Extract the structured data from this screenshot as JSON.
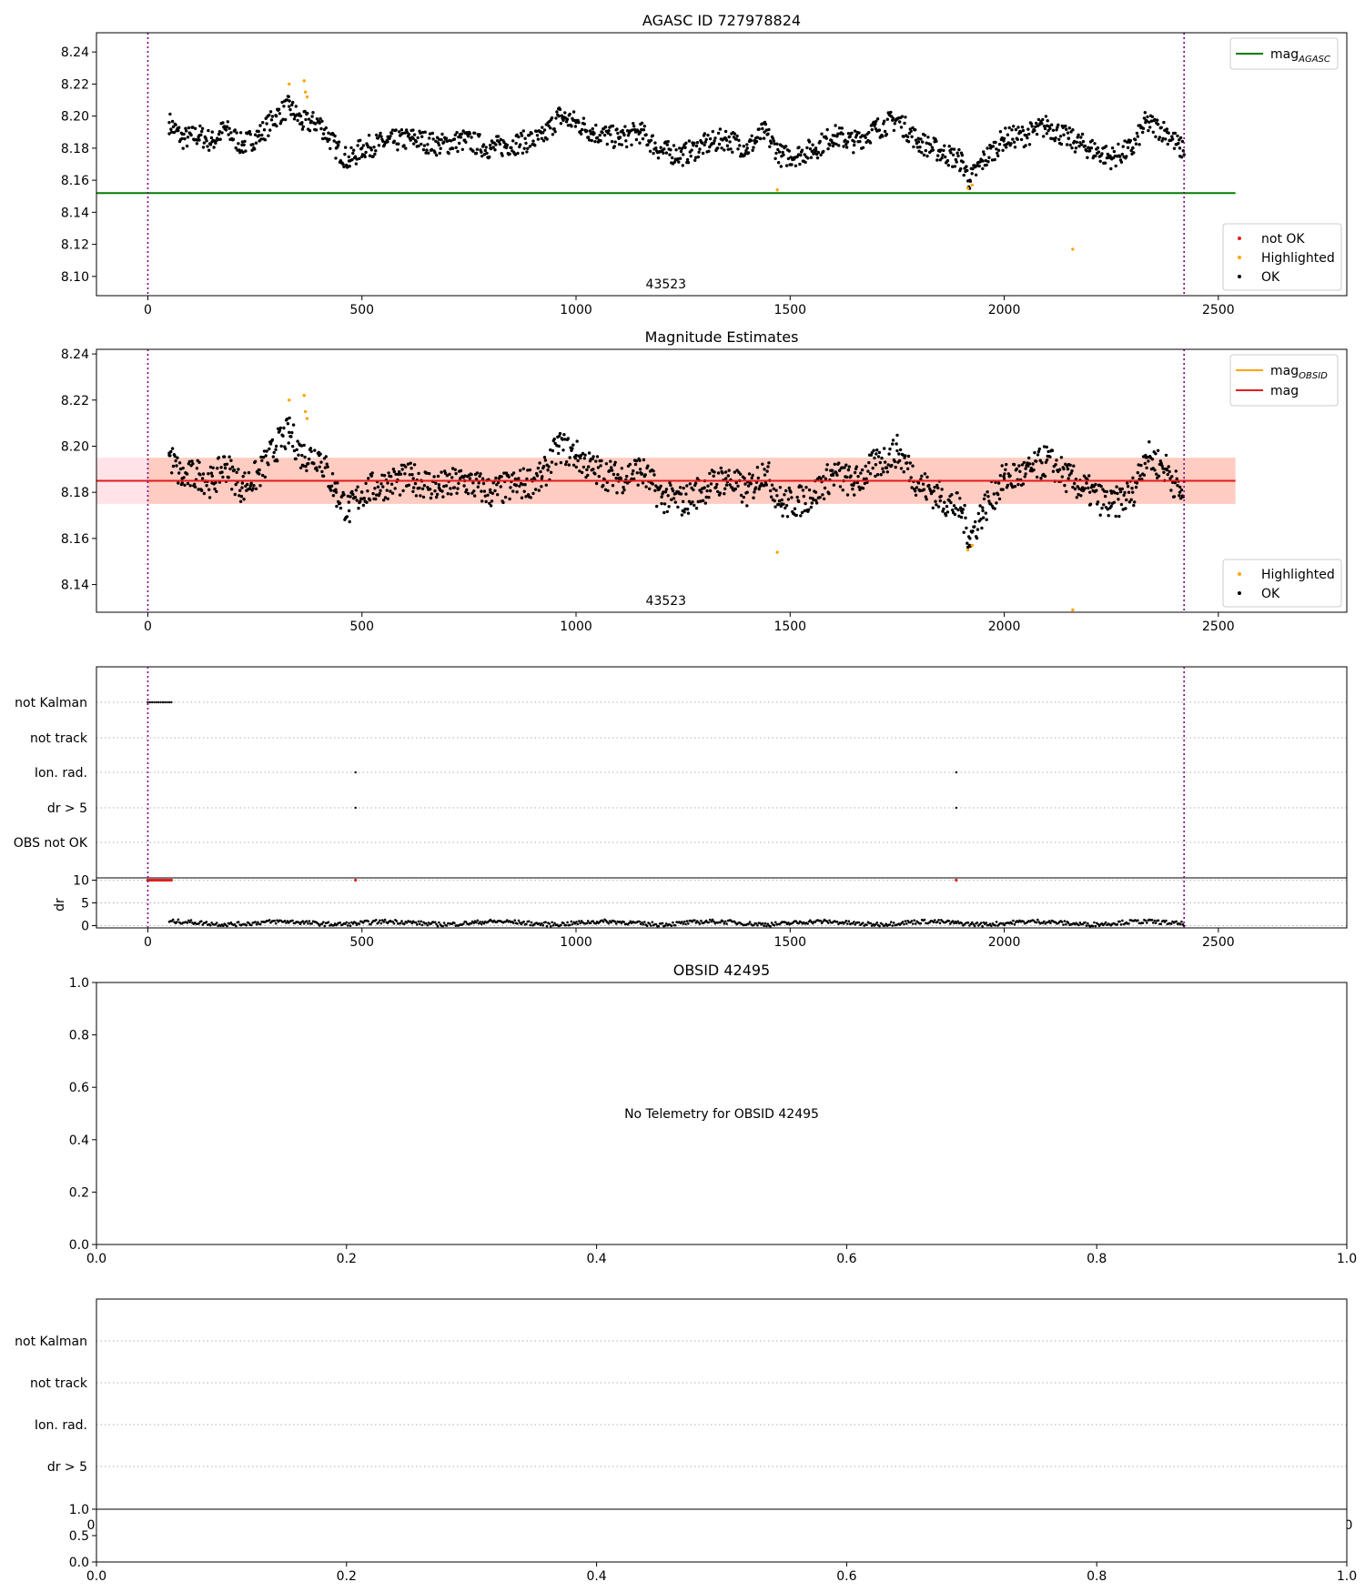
{
  "chart_data": [
    {
      "type": "scatter",
      "title": "AGASC ID 727978824",
      "annotation": "43523",
      "xlim": [
        -120,
        2800
      ],
      "ylim": [
        8.088,
        8.252
      ],
      "xticks": [
        0,
        500,
        1000,
        1500,
        2000,
        2500
      ],
      "yticks": [
        8.1,
        8.12,
        8.14,
        8.16,
        8.18,
        8.2,
        8.22,
        8.24
      ],
      "obs_bounds": [
        0,
        2420
      ],
      "mag_agasc": 8.152,
      "legend_lines": [
        {
          "label": "mag",
          "sub": "AGASC",
          "color": "#007f00"
        }
      ],
      "legend_points": [
        {
          "label": "not OK",
          "color": "#e41a1c"
        },
        {
          "label": "Highlighted",
          "color": "#ffa500"
        },
        {
          "label": "OK",
          "color": "#000000"
        }
      ],
      "series": [
        {
          "name": "OK",
          "color": "#000000",
          "values": [
            [
              50,
              8.196
            ],
            [
              80,
              8.186
            ],
            [
              120,
              8.188
            ],
            [
              150,
              8.184
            ],
            [
              180,
              8.192
            ],
            [
              220,
              8.182
            ],
            [
              260,
              8.188
            ],
            [
              300,
              8.2
            ],
            [
              330,
              8.206
            ],
            [
              360,
              8.196
            ],
            [
              400,
              8.196
            ],
            [
              440,
              8.18
            ],
            [
              470,
              8.172
            ],
            [
              500,
              8.18
            ],
            [
              560,
              8.184
            ],
            [
              620,
              8.186
            ],
            [
              680,
              8.182
            ],
            [
              740,
              8.185
            ],
            [
              800,
              8.18
            ],
            [
              860,
              8.183
            ],
            [
              920,
              8.186
            ],
            [
              960,
              8.2
            ],
            [
              1000,
              8.196
            ],
            [
              1040,
              8.19
            ],
            [
              1100,
              8.186
            ],
            [
              1150,
              8.19
            ],
            [
              1200,
              8.178
            ],
            [
              1250,
              8.176
            ],
            [
              1300,
              8.182
            ],
            [
              1350,
              8.186
            ],
            [
              1400,
              8.18
            ],
            [
              1440,
              8.19
            ],
            [
              1480,
              8.175
            ],
            [
              1520,
              8.176
            ],
            [
              1560,
              8.18
            ],
            [
              1600,
              8.188
            ],
            [
              1650,
              8.184
            ],
            [
              1700,
              8.192
            ],
            [
              1750,
              8.198
            ],
            [
              1800,
              8.184
            ],
            [
              1850,
              8.178
            ],
            [
              1900,
              8.172
            ],
            [
              1920,
              8.16
            ],
            [
              1950,
              8.172
            ],
            [
              2000,
              8.186
            ],
            [
              2050,
              8.188
            ],
            [
              2100,
              8.194
            ],
            [
              2150,
              8.186
            ],
            [
              2200,
              8.18
            ],
            [
              2250,
              8.174
            ],
            [
              2300,
              8.18
            ],
            [
              2330,
              8.196
            ],
            [
              2380,
              8.19
            ],
            [
              2410,
              8.18
            ]
          ]
        },
        {
          "name": "Highlighted",
          "color": "#ffa500",
          "values": [
            [
              330,
              8.22
            ],
            [
              365,
              8.222
            ],
            [
              368,
              8.215
            ],
            [
              372,
              8.212
            ],
            [
              1470,
              8.154
            ],
            [
              1915,
              8.155
            ],
            [
              1925,
              8.157
            ],
            [
              2160,
              8.117
            ]
          ]
        },
        {
          "name": "not OK",
          "color": "#e41a1c",
          "values": []
        }
      ]
    },
    {
      "type": "scatter",
      "title": "Magnitude Estimates",
      "annotation": "43523",
      "xlim": [
        -120,
        2800
      ],
      "ylim": [
        8.128,
        8.242
      ],
      "xticks": [
        0,
        500,
        1000,
        1500,
        2000,
        2500
      ],
      "yticks": [
        8.14,
        8.16,
        8.18,
        8.2,
        8.22,
        8.24
      ],
      "obs_bounds": [
        0,
        2420
      ],
      "mag": 8.185,
      "mag_band": [
        8.175,
        8.195
      ],
      "legend_lines": [
        {
          "label": "mag",
          "sub": "OBSID",
          "color": "#ffa500"
        },
        {
          "label": "mag",
          "sub": "",
          "color": "#e41a1c"
        }
      ],
      "legend_points": [
        {
          "label": "Highlighted",
          "color": "#ffa500"
        },
        {
          "label": "OK",
          "color": "#000000"
        }
      ],
      "series": [
        {
          "name": "OK",
          "color": "#000000",
          "values": [
            [
              50,
              8.196
            ],
            [
              80,
              8.186
            ],
            [
              120,
              8.188
            ],
            [
              150,
              8.184
            ],
            [
              180,
              8.192
            ],
            [
              220,
              8.182
            ],
            [
              260,
              8.188
            ],
            [
              300,
              8.2
            ],
            [
              330,
              8.206
            ],
            [
              360,
              8.196
            ],
            [
              400,
              8.196
            ],
            [
              440,
              8.18
            ],
            [
              470,
              8.172
            ],
            [
              500,
              8.18
            ],
            [
              560,
              8.184
            ],
            [
              620,
              8.186
            ],
            [
              680,
              8.182
            ],
            [
              740,
              8.185
            ],
            [
              800,
              8.18
            ],
            [
              860,
              8.183
            ],
            [
              920,
              8.186
            ],
            [
              960,
              8.2
            ],
            [
              1000,
              8.196
            ],
            [
              1040,
              8.19
            ],
            [
              1100,
              8.186
            ],
            [
              1150,
              8.19
            ],
            [
              1200,
              8.178
            ],
            [
              1250,
              8.176
            ],
            [
              1300,
              8.182
            ],
            [
              1350,
              8.186
            ],
            [
              1400,
              8.18
            ],
            [
              1440,
              8.19
            ],
            [
              1480,
              8.175
            ],
            [
              1520,
              8.176
            ],
            [
              1560,
              8.18
            ],
            [
              1600,
              8.188
            ],
            [
              1650,
              8.184
            ],
            [
              1700,
              8.192
            ],
            [
              1750,
              8.198
            ],
            [
              1800,
              8.184
            ],
            [
              1850,
              8.178
            ],
            [
              1900,
              8.172
            ],
            [
              1920,
              8.16
            ],
            [
              1950,
              8.172
            ],
            [
              2000,
              8.186
            ],
            [
              2050,
              8.188
            ],
            [
              2100,
              8.194
            ],
            [
              2150,
              8.186
            ],
            [
              2200,
              8.18
            ],
            [
              2250,
              8.174
            ],
            [
              2300,
              8.18
            ],
            [
              2330,
              8.196
            ],
            [
              2380,
              8.19
            ],
            [
              2410,
              8.18
            ]
          ]
        },
        {
          "name": "Highlighted",
          "color": "#ffa500",
          "values": [
            [
              330,
              8.22
            ],
            [
              365,
              8.222
            ],
            [
              368,
              8.215
            ],
            [
              372,
              8.212
            ],
            [
              1470,
              8.154
            ],
            [
              1915,
              8.155
            ],
            [
              1925,
              8.157
            ],
            [
              2160,
              8.129
            ]
          ]
        }
      ]
    },
    {
      "type": "scatter",
      "title": "",
      "xlim": [
        -120,
        2800
      ],
      "xticks": [
        0,
        500,
        1000,
        1500,
        2000,
        2500
      ],
      "obs_bounds": [
        0,
        2420
      ],
      "flag_labels": [
        "not Kalman",
        "not track",
        "Ion. rad.",
        "dr > 5",
        "OBS not OK"
      ],
      "flags": {
        "not Kalman": [
          [
            0,
            55
          ]
        ],
        "not track": [],
        "Ion. rad.": [
          [
            485,
            485
          ],
          [
            1888,
            1888
          ]
        ],
        "dr > 5": [
          [
            485,
            485
          ],
          [
            1888,
            1888
          ]
        ],
        "OBS not OK": []
      },
      "dr_ylabel": "dr",
      "dr_yticks": [
        0,
        5,
        10
      ],
      "dr_ylim": [
        -0.5,
        10.5
      ],
      "dr_clipped": [
        [
          0,
          55
        ],
        [
          485,
          485
        ],
        [
          1888,
          1888
        ]
      ],
      "dr_level": 0.6
    },
    {
      "type": "scatter",
      "title": "OBSID 42495",
      "message": "No Telemetry for OBSID 42495",
      "xlim": [
        0,
        1
      ],
      "ylim": [
        0,
        1
      ],
      "xticks": [
        "0.0",
        "0.2",
        "0.4",
        "0.6",
        "0.8",
        "1.0"
      ],
      "yticks": [
        "0.0",
        "0.2",
        "0.4",
        "0.6",
        "0.8",
        "1.0"
      ]
    },
    {
      "type": "scatter",
      "title": "",
      "flag_labels": [
        "not Kalman",
        "not track",
        "Ion. rad.",
        "dr > 5"
      ],
      "dr_yticks": [
        "0.0",
        "0.5",
        "1.0"
      ],
      "xticks": [
        "0.0",
        "0.2",
        "0.4",
        "0.6",
        "0.8",
        "1.0"
      ],
      "hidden_tick_left": "0",
      "hidden_tick_right": "0"
    }
  ]
}
